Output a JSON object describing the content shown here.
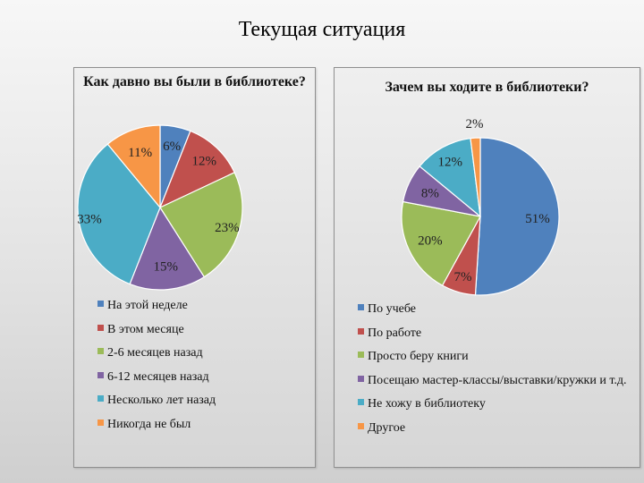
{
  "slide": {
    "title": "Текущая ситуация"
  },
  "chart_data": [
    {
      "type": "pie",
      "title": "Как давно вы были в библиотеке?",
      "legend_position": "bottom",
      "slices": [
        {
          "label": "На этой неделе",
          "value": 6,
          "display": "6%",
          "color": "#4f81bd"
        },
        {
          "label": "В этом месяце",
          "value": 12,
          "display": "12%",
          "color": "#c0504d"
        },
        {
          "label": "2-6 месяцев назад",
          "value": 23,
          "display": "23%",
          "color": "#9bbb59"
        },
        {
          "label": "6-12 месяцев назад",
          "value": 15,
          "display": "15%",
          "color": "#8064a2"
        },
        {
          "label": "Несколько лет назад",
          "value": 33,
          "display": "33%",
          "color": "#4bacc6"
        },
        {
          "label": "Никогда не был",
          "value": 11,
          "display": "11%",
          "color": "#f79646"
        }
      ]
    },
    {
      "type": "pie",
      "title": "Зачем вы ходите в библиотеки?",
      "legend_position": "bottom",
      "slices": [
        {
          "label": "По учебе",
          "value": 51,
          "display": "51%",
          "color": "#4f81bd"
        },
        {
          "label": "По работе",
          "value": 7,
          "display": "7%",
          "color": "#c0504d"
        },
        {
          "label": "Просто беру книги",
          "value": 20,
          "display": "20%",
          "color": "#9bbb59"
        },
        {
          "label": "Посещаю мастер-классы/выставки/кружки и т.д.",
          "value": 8,
          "display": "8%",
          "color": "#8064a2"
        },
        {
          "label": "Не хожу в библиотеку",
          "value": 12,
          "display": "12%",
          "color": "#4bacc6"
        },
        {
          "label": "Другое",
          "value": 2,
          "display": "2%",
          "color": "#f79646"
        }
      ]
    }
  ]
}
